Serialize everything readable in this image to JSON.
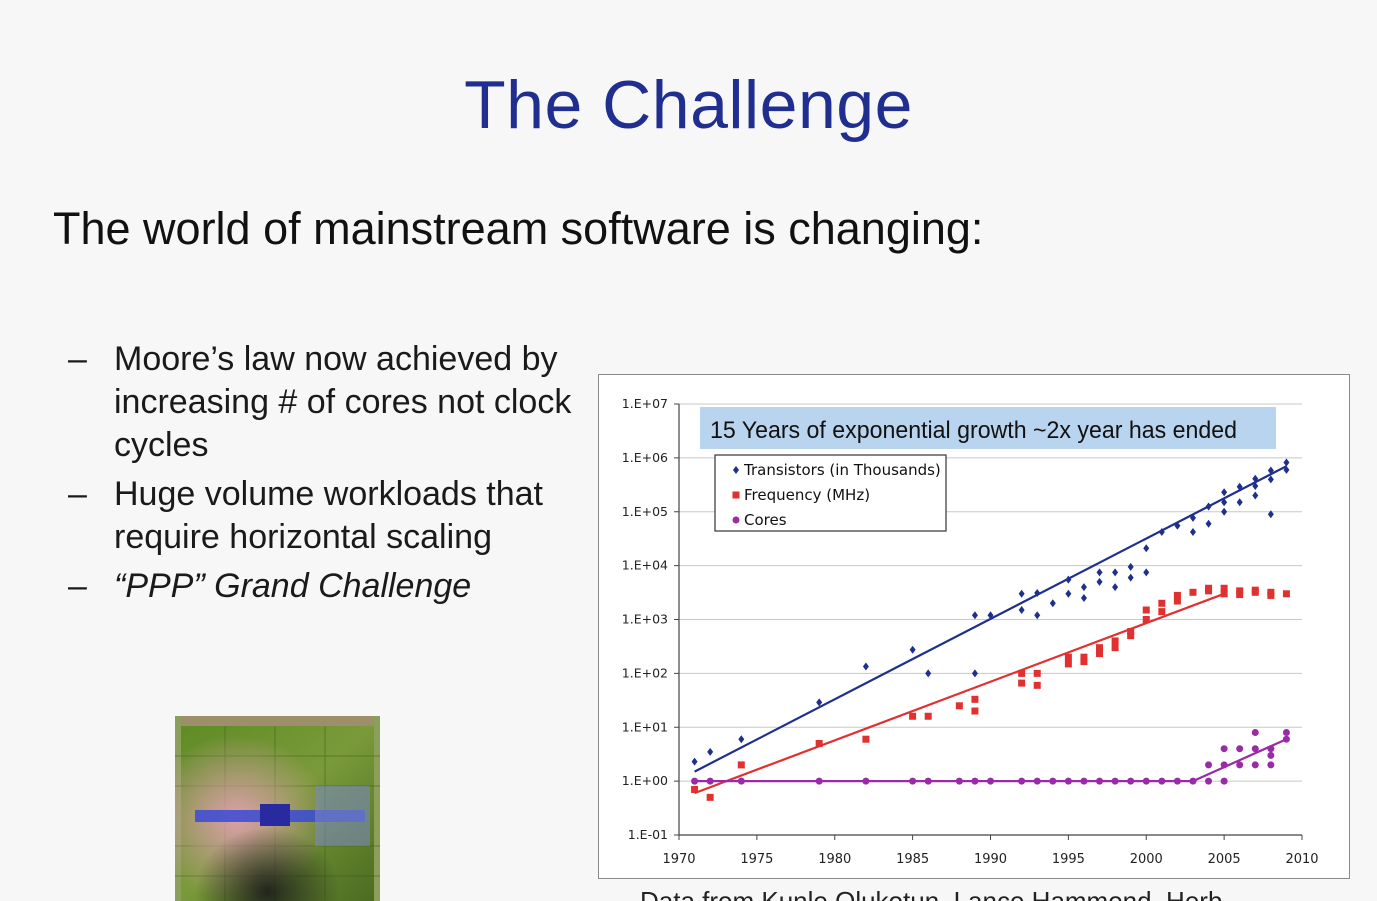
{
  "slide": {
    "title": "The Challenge",
    "subtitle": "The world of mainstream software is changing:",
    "bullets": [
      {
        "dash": "–",
        "text": "Moore’s law now achieved by increasing # of cores not clock cycles"
      },
      {
        "dash": "–",
        "text": "Huge volume workloads that require horizontal scaling"
      },
      {
        "dash": "–",
        "text": "“PPP” Grand Challenge"
      }
    ]
  },
  "chart_data": {
    "type": "scatter",
    "banner": "15 Years of exponential growth ~2x year has ended",
    "xlim": [
      1970,
      2010
    ],
    "ylim_log10": [
      -1,
      7
    ],
    "x_ticks": [
      "1970",
      "1975",
      "1980",
      "1985",
      "1990",
      "1995",
      "2000",
      "2005",
      "2010"
    ],
    "y_ticks": [
      "1.E-01",
      "1.E+00",
      "1.E+01",
      "1.E+02",
      "1.E+03",
      "1.E+04",
      "1.E+05",
      "1.E+06",
      "1.E+07"
    ],
    "grid": true,
    "legend_position": "top-left",
    "series": [
      {
        "name": "Transistors (in Thousands)",
        "color": "#1f2f8c",
        "marker": "diamond",
        "trend": [
          [
            1971,
            1.5
          ],
          [
            2009,
            700000
          ]
        ],
        "points": [
          [
            1971,
            2.3
          ],
          [
            1972,
            3.5
          ],
          [
            1974,
            6
          ],
          [
            1979,
            29
          ],
          [
            1982,
            134
          ],
          [
            1985,
            275
          ],
          [
            1986,
            100
          ],
          [
            1989,
            1200
          ],
          [
            1989,
            100
          ],
          [
            1990,
            1200
          ],
          [
            1992,
            3000
          ],
          [
            1992,
            1500
          ],
          [
            1993,
            1200
          ],
          [
            1993,
            3100
          ],
          [
            1994,
            2000
          ],
          [
            1995,
            5500
          ],
          [
            1995,
            3000
          ],
          [
            1996,
            4000
          ],
          [
            1996,
            2500
          ],
          [
            1997,
            7500
          ],
          [
            1997,
            5000
          ],
          [
            1998,
            7500
          ],
          [
            1998,
            4000
          ],
          [
            1999,
            9500
          ],
          [
            1999,
            6000
          ],
          [
            2000,
            21000
          ],
          [
            2000,
            7500
          ],
          [
            2001,
            42000
          ],
          [
            2002,
            55000
          ],
          [
            2003,
            77000
          ],
          [
            2003,
            42000
          ],
          [
            2004,
            125000
          ],
          [
            2004,
            60000
          ],
          [
            2005,
            230000
          ],
          [
            2005,
            100000
          ],
          [
            2005,
            150000
          ],
          [
            2006,
            291000
          ],
          [
            2006,
            150000
          ],
          [
            2007,
            410000
          ],
          [
            2007,
            200000
          ],
          [
            2007,
            300000
          ],
          [
            2008,
            582000
          ],
          [
            2008,
            400000
          ],
          [
            2008,
            90000
          ],
          [
            2009,
            600000
          ],
          [
            2009,
            820000
          ]
        ]
      },
      {
        "name": "Frequency (MHz)",
        "color": "#e03030",
        "marker": "square",
        "trend": [
          [
            1971,
            0.6
          ],
          [
            2005,
            3000
          ]
        ],
        "points": [
          [
            1971,
            0.7
          ],
          [
            1972,
            0.5
          ],
          [
            1974,
            2
          ],
          [
            1979,
            5
          ],
          [
            1982,
            6
          ],
          [
            1985,
            16
          ],
          [
            1986,
            16
          ],
          [
            1988,
            25
          ],
          [
            1989,
            33
          ],
          [
            1989,
            20
          ],
          [
            1992,
            66
          ],
          [
            1992,
            100
          ],
          [
            1993,
            60
          ],
          [
            1993,
            100
          ],
          [
            1995,
            150
          ],
          [
            1995,
            200
          ],
          [
            1996,
            200
          ],
          [
            1996,
            166
          ],
          [
            1997,
            300
          ],
          [
            1997,
            233
          ],
          [
            1998,
            400
          ],
          [
            1998,
            300
          ],
          [
            1999,
            600
          ],
          [
            1999,
            500
          ],
          [
            2000,
            1000
          ],
          [
            2000,
            1500
          ],
          [
            2001,
            2000
          ],
          [
            2001,
            1400
          ],
          [
            2002,
            2800
          ],
          [
            2002,
            2200
          ],
          [
            2003,
            3200
          ],
          [
            2004,
            3800
          ],
          [
            2004,
            3400
          ],
          [
            2005,
            3800
          ],
          [
            2005,
            3000
          ],
          [
            2006,
            3400
          ],
          [
            2006,
            2900
          ],
          [
            2007,
            3200
          ],
          [
            2007,
            3500
          ],
          [
            2008,
            3200
          ],
          [
            2008,
            2800
          ],
          [
            2009,
            3000
          ]
        ]
      },
      {
        "name": "Cores",
        "color": "#9b2aa8",
        "marker": "circle",
        "trend": [
          [
            1971,
            1
          ],
          [
            2003,
            1
          ],
          [
            2009,
            6
          ]
        ],
        "points": [
          [
            1971,
            1
          ],
          [
            1972,
            1
          ],
          [
            1974,
            1
          ],
          [
            1979,
            1
          ],
          [
            1982,
            1
          ],
          [
            1985,
            1
          ],
          [
            1986,
            1
          ],
          [
            1988,
            1
          ],
          [
            1989,
            1
          ],
          [
            1990,
            1
          ],
          [
            1992,
            1
          ],
          [
            1993,
            1
          ],
          [
            1994,
            1
          ],
          [
            1995,
            1
          ],
          [
            1996,
            1
          ],
          [
            1997,
            1
          ],
          [
            1998,
            1
          ],
          [
            1999,
            1
          ],
          [
            2000,
            1
          ],
          [
            2001,
            1
          ],
          [
            2002,
            1
          ],
          [
            2003,
            1
          ],
          [
            2004,
            2
          ],
          [
            2004,
            1
          ],
          [
            2005,
            4
          ],
          [
            2005,
            2
          ],
          [
            2005,
            1
          ],
          [
            2006,
            2
          ],
          [
            2006,
            4
          ],
          [
            2007,
            8
          ],
          [
            2007,
            4
          ],
          [
            2007,
            2
          ],
          [
            2008,
            4
          ],
          [
            2008,
            2
          ],
          [
            2008,
            3
          ],
          [
            2009,
            6
          ],
          [
            2009,
            8
          ]
        ]
      }
    ]
  },
  "chip_image": {
    "description_icon": "gpu-die-photo-icon",
    "colors": [
      "#6a8f2a",
      "#c43a5a",
      "#3a3ad0",
      "#8fb83a",
      "#2a2a2a"
    ]
  },
  "caption_fragment": "Data from Kunle Olukotun, Lance Hammond, Herb"
}
